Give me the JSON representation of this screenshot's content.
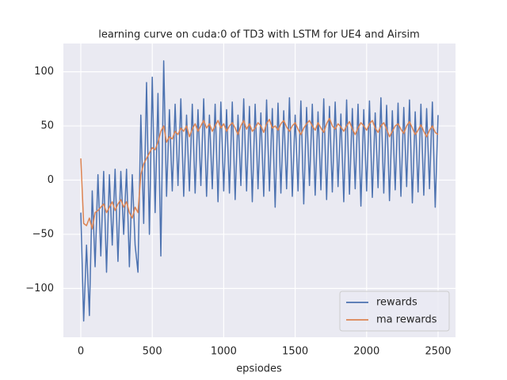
{
  "chart_data": {
    "type": "line",
    "title": "learning curve on cuda:0 of TD3 with LSTM for UE4 and Airsim",
    "x_label": "epsiodes",
    "x": [
      0,
      20,
      40,
      60,
      80,
      100,
      120,
      140,
      160,
      180,
      200,
      220,
      240,
      260,
      280,
      300,
      320,
      340,
      360,
      380,
      400,
      420,
      440,
      460,
      480,
      500,
      520,
      540,
      560,
      580,
      600,
      620,
      640,
      660,
      680,
      700,
      720,
      740,
      760,
      780,
      800,
      820,
      840,
      860,
      880,
      900,
      920,
      940,
      960,
      980,
      1000,
      1020,
      1040,
      1060,
      1080,
      1100,
      1120,
      1140,
      1160,
      1180,
      1200,
      1220,
      1240,
      1260,
      1280,
      1300,
      1320,
      1340,
      1360,
      1380,
      1400,
      1420,
      1440,
      1460,
      1480,
      1500,
      1520,
      1540,
      1560,
      1580,
      1600,
      1620,
      1640,
      1660,
      1680,
      1700,
      1720,
      1740,
      1760,
      1780,
      1800,
      1820,
      1840,
      1860,
      1880,
      1900,
      1920,
      1940,
      1960,
      1980,
      2000,
      2020,
      2040,
      2060,
      2080,
      2100,
      2120,
      2140,
      2160,
      2180,
      2200,
      2220,
      2240,
      2260,
      2280,
      2300,
      2320,
      2340,
      2360,
      2380,
      2400,
      2420,
      2440,
      2460,
      2480,
      2500
    ],
    "series": [
      {
        "name": "rewards",
        "color": "#4c72b0",
        "values": [
          -30,
          -130,
          -60,
          -125,
          -10,
          -80,
          5,
          -70,
          8,
          -85,
          5,
          -60,
          10,
          -75,
          8,
          -50,
          10,
          -80,
          5,
          -60,
          -85,
          60,
          -40,
          90,
          -50,
          95,
          -30,
          80,
          -70,
          110,
          -15,
          65,
          -10,
          70,
          -5,
          75,
          -15,
          60,
          -10,
          70,
          -12,
          65,
          -5,
          75,
          -15,
          60,
          -8,
          70,
          -20,
          72,
          -10,
          65,
          -12,
          72,
          -18,
          60,
          -5,
          75,
          -10,
          68,
          -20,
          70,
          -8,
          62,
          -15,
          74,
          -10,
          66,
          -25,
          71,
          -12,
          64,
          -8,
          76,
          -15,
          60,
          -10,
          73,
          -22,
          67,
          -5,
          70,
          -14,
          63,
          -9,
          75,
          -18,
          68,
          -11,
          72,
          -6,
          61,
          -20,
          74,
          -13,
          66,
          -8,
          70,
          -24,
          65,
          -10,
          73,
          -16,
          62,
          -7,
          76,
          -12,
          69,
          -19,
          64,
          -9,
          71,
          -15,
          67,
          -6,
          74,
          -21,
          63,
          -11,
          70,
          -14,
          66,
          -8,
          72,
          -25,
          60
        ]
      },
      {
        "name": "ma rewards",
        "color": "#dd8452",
        "values": [
          20,
          -40,
          -42,
          -35,
          -45,
          -30,
          -28,
          -25,
          -22,
          -30,
          -25,
          -20,
          -28,
          -22,
          -18,
          -25,
          -20,
          -30,
          -35,
          -25,
          -30,
          5,
          15,
          20,
          25,
          30,
          28,
          35,
          45,
          50,
          35,
          40,
          38,
          45,
          42,
          48,
          45,
          50,
          40,
          47,
          52,
          45,
          50,
          55,
          48,
          52,
          45,
          50,
          55,
          48,
          52,
          45,
          50,
          53,
          48,
          42,
          50,
          55,
          47,
          52,
          45,
          48,
          53,
          50,
          44,
          52,
          56,
          48,
          50,
          46,
          52,
          55,
          49,
          45,
          50,
          53,
          47,
          42,
          48,
          52,
          55,
          50,
          46,
          53,
          48,
          44,
          52,
          57,
          50,
          47,
          52,
          49,
          45,
          50,
          54,
          47,
          42,
          48,
          53,
          50,
          46,
          52,
          55,
          48,
          44,
          50,
          53,
          47,
          40,
          45,
          50,
          52,
          47,
          43,
          50,
          54,
          48,
          42,
          46,
          51,
          45,
          40,
          46,
          50,
          44,
          42
        ]
      }
    ],
    "xlim": [
      -122,
      2622
    ],
    "ylim": [
      -145,
      126
    ],
    "xticks": [
      0,
      500,
      1000,
      1500,
      2000,
      2500
    ],
    "yticks": [
      {
        "value": -100,
        "label": "−100"
      },
      {
        "value": -50,
        "label": "−50"
      },
      0,
      50,
      100
    ],
    "grid": true,
    "legend": "lower right"
  }
}
